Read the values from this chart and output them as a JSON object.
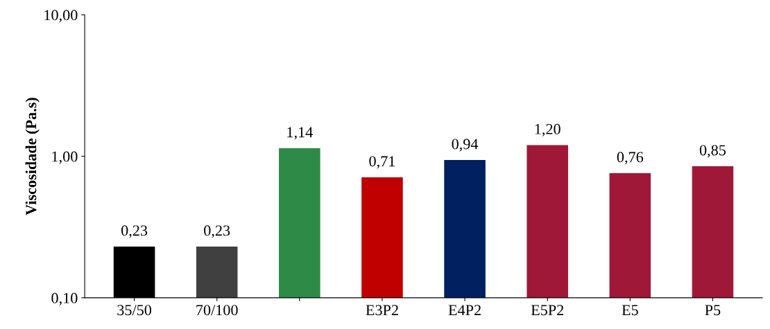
{
  "chart_data": {
    "type": "bar",
    "ylabel": "Viscosidade (Pa.s)",
    "categories": [
      "35/50",
      "70/100",
      null,
      "E3P2",
      "E4P2",
      "E5P2",
      "E5",
      "P5"
    ],
    "values": [
      0.23,
      0.23,
      1.14,
      0.71,
      0.94,
      1.2,
      0.76,
      0.85
    ],
    "value_labels": [
      "0,23",
      "0,23",
      "1,14",
      "0,71",
      "0,94",
      "1,20",
      "0,76",
      "0,85"
    ],
    "colors": [
      "#000000",
      "#404040",
      "#2e8b47",
      "#c00000",
      "#002060",
      "#a01838",
      "#a01838",
      "#a01838"
    ],
    "log": "y",
    "ylim": [
      0.1,
      10
    ],
    "yticks": [
      {
        "value": 0.1,
        "label": "0,10"
      },
      {
        "value": 1,
        "label": "1,00"
      },
      {
        "value": 10,
        "label": "10,00"
      }
    ],
    "grid": false,
    "legend": false
  }
}
